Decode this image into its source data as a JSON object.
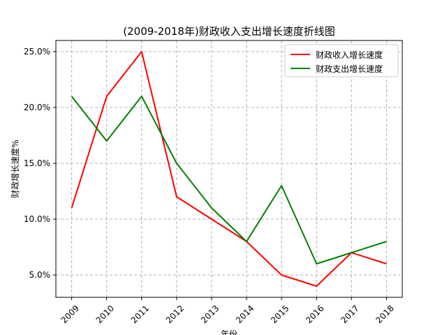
{
  "chart_data": {
    "type": "line",
    "title": "(2009-2018年)财政收入支出增长速度折线图",
    "xlabel": "年份",
    "ylabel": "财政增长速度%",
    "x": [
      "2009",
      "2010",
      "2011",
      "2012",
      "2013",
      "2014",
      "2015",
      "2016",
      "2017",
      "2018"
    ],
    "ylim": [
      3.0,
      26.0
    ],
    "yticks": [
      5.0,
      10.0,
      15.0,
      20.0,
      25.0
    ],
    "ytick_labels": [
      "5.0%",
      "10.0%",
      "15.0%",
      "20.0%",
      "25.0%"
    ],
    "grid": true,
    "legend_position": "top-right",
    "series": [
      {
        "name": "财政收入增长速度",
        "color": "#ff0000",
        "values": [
          11,
          21,
          25,
          12,
          10,
          8,
          5,
          4,
          7,
          6
        ]
      },
      {
        "name": "财政支出增长速度",
        "color": "#008000",
        "values": [
          21,
          17,
          21,
          15,
          11,
          8,
          13,
          6,
          7,
          8
        ]
      }
    ]
  }
}
